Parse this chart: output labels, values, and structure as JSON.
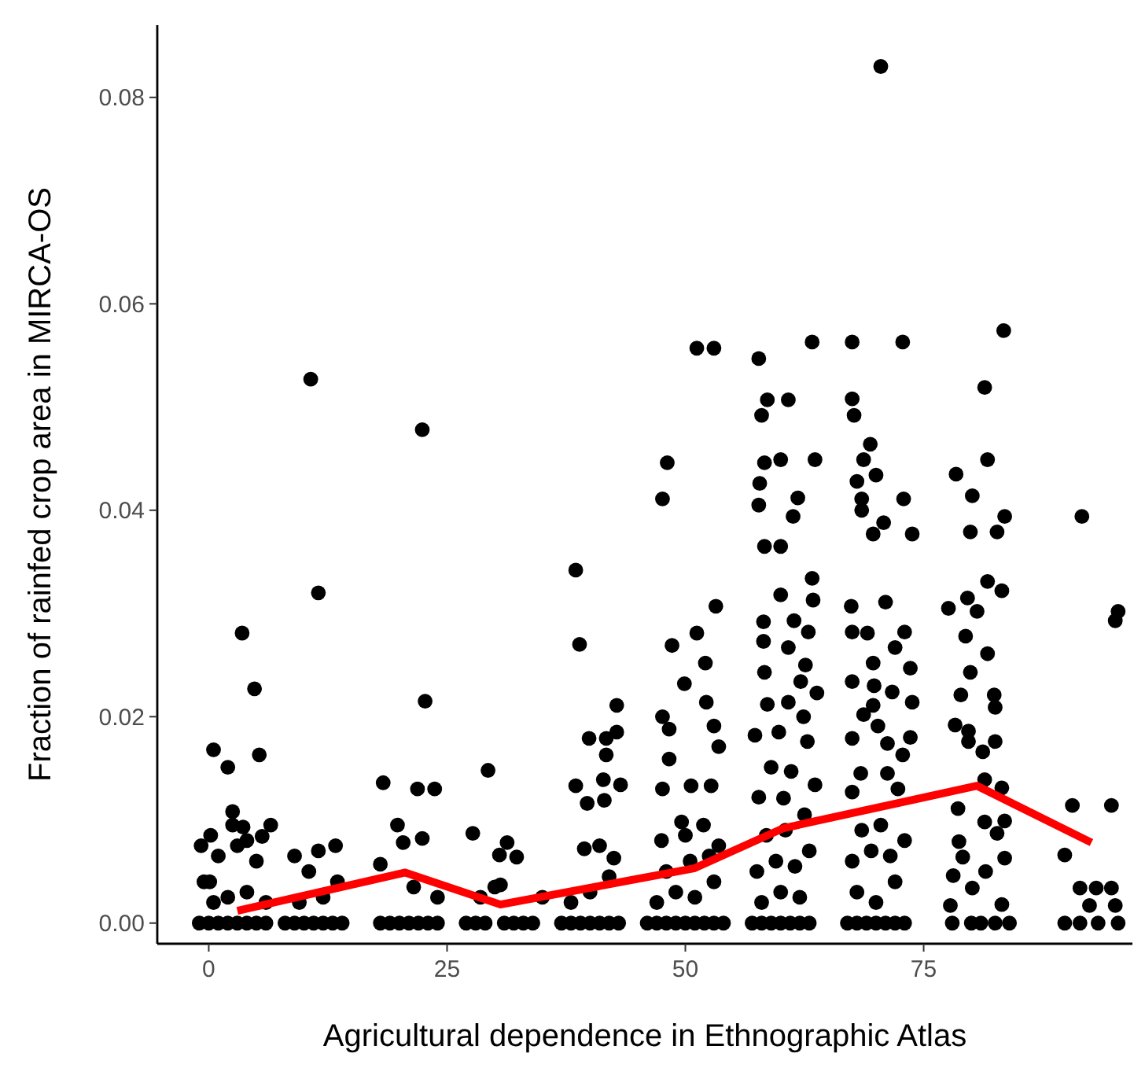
{
  "chart_data": {
    "type": "scatter",
    "xlabel": "Agricultural dependence in Ethnographic Atlas",
    "ylabel": "Fraction of rainfed crop area in MIRCA-OS",
    "xlim": [
      -5.4,
      96.9
    ],
    "ylim": [
      -0.002,
      0.087
    ],
    "xticks": [
      0,
      25,
      50,
      75
    ],
    "yticks": [
      {
        "value": 0,
        "label": "0.00"
      },
      {
        "value": 0.02,
        "label": "0.02"
      },
      {
        "value": 0.04,
        "label": "0.04"
      },
      {
        "value": 0.06,
        "label": "0.06"
      },
      {
        "value": 0.08,
        "label": "0.08"
      }
    ],
    "series": [
      {
        "color": "#000000",
        "marker": "circle",
        "x": [
          0,
          1,
          2,
          3,
          4,
          5,
          6,
          -1,
          0.5,
          2,
          4,
          6,
          -0.5,
          1,
          3,
          5,
          -0.8,
          0.2,
          2.5,
          4,
          6.5,
          0.5,
          2,
          5.3,
          2.5,
          3.6,
          5.6,
          0.1,
          3.5,
          4.8,
          8,
          9,
          10,
          11,
          12,
          13,
          14,
          9.5,
          12,
          13.5,
          10.5,
          9,
          11.5,
          13.3,
          10.7,
          11.5,
          18,
          19,
          20,
          21,
          22,
          23,
          24,
          21.5,
          24,
          18.3,
          21.9,
          23.7,
          22.7,
          19.8,
          20.4,
          22.4,
          18,
          22.4,
          27,
          28,
          29,
          31,
          32,
          33,
          34,
          28.5,
          30,
          35,
          29.3,
          27.7,
          31.3,
          30.5,
          32.3,
          30.6,
          37,
          38,
          39,
          40,
          41,
          42,
          43,
          38,
          40,
          42,
          38.5,
          38.9,
          42.8,
          39.9,
          41.7,
          42.8,
          41.7,
          38.5,
          41.4,
          43.2,
          39.7,
          41.5,
          39.4,
          41,
          42.5,
          46,
          47,
          48,
          49,
          50,
          51,
          52,
          53,
          54,
          47,
          49,
          51,
          53,
          48,
          50.5,
          52.5,
          47.5,
          50,
          53.5,
          48.1,
          47.6,
          51.2,
          53,
          53.2,
          48.6,
          51.2,
          52.1,
          49.9,
          52.2,
          47.6,
          48.3,
          53,
          53.5,
          48.3,
          47.6,
          50.6,
          52.7,
          49.6,
          51.9,
          57,
          58,
          59,
          60,
          61,
          62,
          63,
          58,
          60,
          62,
          57.5,
          59.5,
          61.5,
          63,
          58.5,
          60.5,
          62.5,
          57.7,
          58.6,
          60.8,
          58,
          63.3,
          58.3,
          60,
          63.6,
          57.8,
          57.7,
          61.8,
          61.3,
          58.3,
          60,
          63.3,
          60,
          63.4,
          58.2,
          61.4,
          62.9,
          58.2,
          60.8,
          62.6,
          58.3,
          62.1,
          63.8,
          58.6,
          60.8,
          62.4,
          57.3,
          59.8,
          62.8,
          59,
          61.1,
          63.6,
          57.7,
          60.3,
          67,
          68,
          69,
          70,
          71,
          72,
          73,
          68,
          70,
          72,
          67.5,
          69.5,
          71.5,
          73,
          68.5,
          70.5,
          70.5,
          67.5,
          72.8,
          67.5,
          67.7,
          69.4,
          68.7,
          70,
          68,
          68.5,
          72.9,
          68.5,
          70.8,
          69.7,
          73.8,
          67.4,
          71,
          73,
          67.5,
          69.1,
          72,
          69.7,
          73.6,
          67.5,
          69.8,
          71.7,
          73.8,
          69.7,
          68.7,
          70.2,
          67.5,
          73.6,
          71.2,
          72.8,
          68.4,
          71.2,
          67.5,
          72.3,
          78,
          80,
          81,
          82.5,
          84,
          83.4,
          81.4,
          81.7,
          78.4,
          80.1,
          79.9,
          82.7,
          83.5,
          81.7,
          83.2,
          77.6,
          79.6,
          80.6,
          81.7,
          79.4,
          79.9,
          78.9,
          82.4,
          82.5,
          78.3,
          79.7,
          79.7,
          82.5,
          81.2,
          81.4,
          83.2,
          78.6,
          81.4,
          83.5,
          78.7,
          82.7,
          79.1,
          78.1,
          81.5,
          83.5,
          80.1,
          77.8,
          83.2,
          91.6,
          95.4,
          95.1,
          90.6,
          94.7,
          89.8,
          91.4,
          93.1,
          94.7,
          92.4,
          95.1,
          89.8,
          91.4,
          93.3,
          95.4
        ],
        "values": [
          0,
          0,
          0,
          0,
          0,
          0,
          0,
          0,
          0.002,
          0.0025,
          0.003,
          0.002,
          0.004,
          0.0065,
          0.0075,
          0.006,
          0.0075,
          0.0085,
          0.0095,
          0.008,
          0.0095,
          0.0168,
          0.0151,
          0.0163,
          0.0108,
          0.0093,
          0.0084,
          0.004,
          0.0281,
          0.0227,
          0,
          0,
          0,
          0,
          0,
          0,
          0,
          0.002,
          0.0025,
          0.004,
          0.005,
          0.0065,
          0.007,
          0.0075,
          0.0527,
          0.032,
          0,
          0,
          0,
          0,
          0,
          0,
          0,
          0.0035,
          0.0025,
          0.0136,
          0.013,
          0.013,
          0.0215,
          0.0095,
          0.0078,
          0.0082,
          0.0057,
          0.0478,
          0,
          0,
          0,
          0,
          0,
          0,
          0,
          0.0025,
          0.0035,
          0.0025,
          0.0148,
          0.0087,
          0.0078,
          0.0066,
          0.0064,
          0.0037,
          0,
          0,
          0,
          0,
          0,
          0,
          0,
          0.002,
          0.003,
          0.0045,
          0.0342,
          0.027,
          0.0211,
          0.0179,
          0.0179,
          0.0185,
          0.0163,
          0.0133,
          0.0139,
          0.0134,
          0.0116,
          0.0119,
          0.0072,
          0.0075,
          0.0063,
          0,
          0,
          0,
          0,
          0,
          0,
          0,
          0,
          0,
          0.002,
          0.003,
          0.0025,
          0.004,
          0.005,
          0.006,
          0.0065,
          0.008,
          0.0085,
          0.0075,
          0.0446,
          0.0411,
          0.0557,
          0.0557,
          0.0307,
          0.0269,
          0.0281,
          0.0252,
          0.0232,
          0.0214,
          0.02,
          0.0188,
          0.0191,
          0.0171,
          0.0159,
          0.013,
          0.0133,
          0.0133,
          0.0098,
          0.0095,
          0,
          0,
          0,
          0,
          0,
          0,
          0,
          0.002,
          0.003,
          0.0025,
          0.005,
          0.006,
          0.0055,
          0.007,
          0.0085,
          0.009,
          0.0105,
          0.0547,
          0.0507,
          0.0507,
          0.0492,
          0.0563,
          0.0446,
          0.0449,
          0.0449,
          0.0426,
          0.0405,
          0.0412,
          0.0394,
          0.0365,
          0.0365,
          0.0334,
          0.0318,
          0.0313,
          0.0292,
          0.0293,
          0.0282,
          0.0273,
          0.0267,
          0.025,
          0.0243,
          0.0234,
          0.0223,
          0.0212,
          0.0214,
          0.02,
          0.0182,
          0.0185,
          0.0176,
          0.0151,
          0.0147,
          0.0134,
          0.0122,
          0.0121,
          0,
          0,
          0,
          0,
          0,
          0,
          0,
          0.003,
          0.002,
          0.004,
          0.006,
          0.007,
          0.0065,
          0.008,
          0.009,
          0.0095,
          0.083,
          0.0563,
          0.0563,
          0.0508,
          0.0492,
          0.0464,
          0.0449,
          0.0434,
          0.0428,
          0.0411,
          0.0411,
          0.04,
          0.0388,
          0.0377,
          0.0377,
          0.0307,
          0.0311,
          0.0282,
          0.0282,
          0.0281,
          0.0267,
          0.0252,
          0.0247,
          0.0234,
          0.023,
          0.0224,
          0.0214,
          0.0211,
          0.0202,
          0.0191,
          0.0179,
          0.018,
          0.0174,
          0.0163,
          0.0145,
          0.0145,
          0.0127,
          0.013,
          0,
          0,
          0,
          0,
          0,
          0.0574,
          0.0519,
          0.0449,
          0.0435,
          0.0414,
          0.0379,
          0.0379,
          0.0394,
          0.0331,
          0.0322,
          0.0305,
          0.0315,
          0.0302,
          0.0261,
          0.0278,
          0.0243,
          0.0221,
          0.0221,
          0.0209,
          0.0192,
          0.0186,
          0.0176,
          0.0176,
          0.0166,
          0.0139,
          0.0131,
          0.0111,
          0.0098,
          0.0099,
          0.0079,
          0.0087,
          0.0064,
          0.0046,
          0.005,
          0.0063,
          0.0034,
          0.0017,
          0.0018,
          0.0394,
          0.0302,
          0.0293,
          0.0114,
          0.0114,
          0.0066,
          0.0034,
          0.0034,
          0.0034,
          0.0017,
          0.0017,
          0,
          0,
          0,
          0
        ]
      },
      {
        "type": "line",
        "color": "#ff0000",
        "x": [
          3,
          20.6,
          30.6,
          50.9,
          60.3,
          80.6,
          92.6
        ],
        "values": [
          0.0012,
          0.0049,
          0.0018,
          0.0053,
          0.0092,
          0.0133,
          0.0078
        ]
      }
    ]
  }
}
